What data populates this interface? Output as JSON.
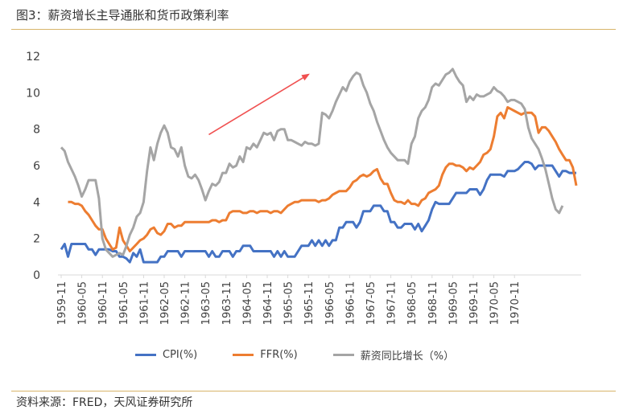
{
  "figure": {
    "title": "图3：薪资增长主导通胀和货币政策利率",
    "source": "资料来源：FRED，天风证券研究所"
  },
  "colors": {
    "cpi": "#4472C4",
    "ffr": "#ED7D31",
    "wage": "#A5A5A5",
    "arrow": "#F05050",
    "rule": "#D8B46A"
  },
  "chart_data": {
    "type": "line",
    "ylim": [
      0,
      12
    ],
    "yticks": [
      "0",
      "2",
      "4",
      "6",
      "8",
      "10",
      "12"
    ],
    "xtick_labels": [
      "1959-11",
      "1960-05",
      "1960-11",
      "1961-05",
      "1961-11",
      "1962-05",
      "1962-11",
      "1963-05",
      "1963-11",
      "1964-05",
      "1964-11",
      "1965-05",
      "1965-11",
      "1966-05",
      "1966-11",
      "1967-05",
      "1967-11",
      "1968-05",
      "1968-11",
      "1969-05",
      "1969-11",
      "1970-05",
      "1970-11"
    ],
    "x_start": "1959-11",
    "grid": false,
    "legend_position": "bottom",
    "series": [
      {
        "name": "CPI(%)",
        "color_key": "cpi",
        "values": [
          1.4,
          1.7,
          1.0,
          1.7,
          1.7,
          1.7,
          1.7,
          1.7,
          1.4,
          1.4,
          1.1,
          1.4,
          1.4,
          1.4,
          1.4,
          1.3,
          1.3,
          1.0,
          1.0,
          0.9,
          0.7,
          1.2,
          1.0,
          1.4,
          0.7,
          0.7,
          0.7,
          0.7,
          0.7,
          1.0,
          1.0,
          1.3,
          1.3,
          1.3,
          1.3,
          1.0,
          1.3,
          1.3,
          1.3,
          1.3,
          1.3,
          1.3,
          1.3,
          1.0,
          1.3,
          1.0,
          1.0,
          1.3,
          1.3,
          1.3,
          1.0,
          1.3,
          1.3,
          1.6,
          1.6,
          1.6,
          1.3,
          1.3,
          1.3,
          1.3,
          1.3,
          1.3,
          1.0,
          1.3,
          1.0,
          1.3,
          1.0,
          1.0,
          1.0,
          1.3,
          1.6,
          1.6,
          1.6,
          1.9,
          1.6,
          1.9,
          1.6,
          1.9,
          1.6,
          1.9,
          1.9,
          2.6,
          2.6,
          2.9,
          2.9,
          2.9,
          2.6,
          2.9,
          3.5,
          3.5,
          3.5,
          3.8,
          3.8,
          3.8,
          3.5,
          3.5,
          2.9,
          2.9,
          2.6,
          2.6,
          2.8,
          2.8,
          2.8,
          2.5,
          2.8,
          2.4,
          2.7,
          3.0,
          3.6,
          4.0,
          3.9,
          3.9,
          3.9,
          3.9,
          4.2,
          4.5,
          4.5,
          4.5,
          4.5,
          4.7,
          4.7,
          4.7,
          4.4,
          4.7,
          5.2,
          5.5,
          5.5,
          5.5,
          5.5,
          5.4,
          5.7,
          5.7,
          5.7,
          5.8,
          6.0,
          6.2,
          6.2,
          6.1,
          5.8,
          6.0,
          6.0,
          6.0,
          6.0,
          6.0,
          5.7,
          5.4,
          5.7,
          5.7,
          5.6,
          5.6,
          5.6
        ]
      },
      {
        "name": "FFR(%)",
        "color_key": "ffr",
        "values": [
          null,
          null,
          4.0,
          4.0,
          3.9,
          3.9,
          3.8,
          3.5,
          3.3,
          3.0,
          2.7,
          2.5,
          2.5,
          2.0,
          1.7,
          1.4,
          1.5,
          2.6,
          1.9,
          1.6,
          1.3,
          1.5,
          1.7,
          1.9,
          2.0,
          2.2,
          2.5,
          2.6,
          2.3,
          2.2,
          2.4,
          2.8,
          2.8,
          2.6,
          2.7,
          2.7,
          2.9,
          2.9,
          2.9,
          2.9,
          2.9,
          2.9,
          2.9,
          2.9,
          3.0,
          3.0,
          2.9,
          3.0,
          3.0,
          3.4,
          3.5,
          3.5,
          3.5,
          3.4,
          3.4,
          3.5,
          3.5,
          3.4,
          3.5,
          3.5,
          3.5,
          3.4,
          3.5,
          3.5,
          3.4,
          3.6,
          3.8,
          3.9,
          4.0,
          4.0,
          4.1,
          4.1,
          4.1,
          4.1,
          4.1,
          4.0,
          4.1,
          4.1,
          4.2,
          4.4,
          4.5,
          4.6,
          4.6,
          4.6,
          4.8,
          5.1,
          5.2,
          5.4,
          5.5,
          5.4,
          5.5,
          5.7,
          5.8,
          5.3,
          5.0,
          5.0,
          4.5,
          4.1,
          4.0,
          4.0,
          3.9,
          4.1,
          3.9,
          3.9,
          3.8,
          4.1,
          4.2,
          4.5,
          4.6,
          4.7,
          4.9,
          5.5,
          5.9,
          6.1,
          6.1,
          6.0,
          6.0,
          5.9,
          5.7,
          5.9,
          5.8,
          6.0,
          6.2,
          6.6,
          6.7,
          6.9,
          7.6,
          8.7,
          8.9,
          8.6,
          9.2,
          9.1,
          9.0,
          8.9,
          8.8,
          8.9,
          8.9,
          8.9,
          8.7,
          7.8,
          8.1,
          8.1,
          7.9,
          7.6,
          7.3,
          6.9,
          6.6,
          6.3,
          6.3,
          5.9,
          4.9
        ]
      },
      {
        "name": "薪资同比增长（%）",
        "color_key": "wage",
        "values": [
          7.0,
          6.8,
          6.2,
          5.8,
          5.4,
          4.9,
          4.3,
          4.7,
          5.2,
          5.2,
          5.2,
          4.2,
          2.0,
          1.4,
          1.2,
          1.0,
          1.1,
          1.2,
          1.1,
          1.6,
          2.2,
          2.6,
          3.2,
          3.4,
          4.0,
          5.7,
          7.0,
          6.3,
          7.2,
          7.8,
          8.2,
          7.8,
          7.0,
          6.9,
          6.5,
          7.0,
          6.0,
          5.4,
          5.3,
          5.5,
          5.2,
          4.7,
          4.1,
          4.6,
          5.0,
          4.9,
          5.1,
          5.6,
          5.6,
          6.1,
          5.9,
          6.0,
          6.5,
          6.2,
          7.0,
          6.9,
          7.2,
          7.0,
          7.4,
          7.8,
          7.7,
          7.8,
          7.4,
          7.9,
          8.0,
          8.0,
          7.4,
          7.4,
          7.3,
          7.2,
          7.1,
          7.3,
          7.2,
          7.2,
          7.1,
          7.2,
          8.9,
          8.8,
          8.6,
          9.0,
          9.5,
          9.9,
          10.3,
          10.1,
          10.6,
          10.9,
          11.1,
          11.0,
          10.4,
          10.0,
          9.4,
          9.0,
          8.4,
          7.9,
          7.4,
          7.0,
          6.7,
          6.5,
          6.3,
          6.3,
          6.3,
          6.1,
          7.2,
          7.6,
          8.6,
          9.0,
          9.2,
          9.6,
          10.3,
          10.5,
          10.4,
          10.7,
          11.0,
          11.1,
          11.3,
          10.9,
          10.6,
          10.4,
          9.5,
          9.8,
          9.6,
          9.9,
          9.8,
          9.8,
          9.9,
          10.0,
          10.3,
          10.1,
          10.0,
          9.8,
          9.5,
          9.6,
          9.6,
          9.5,
          9.4,
          9.1,
          8.1,
          7.5,
          7.2,
          6.9,
          6.4,
          5.8,
          5.0,
          4.2,
          3.6,
          3.4,
          3.8
        ]
      }
    ],
    "annotation": {
      "type": "arrow",
      "from": [
        "1963-06",
        7.7
      ],
      "to": [
        "1965-11",
        11.0
      ]
    }
  }
}
